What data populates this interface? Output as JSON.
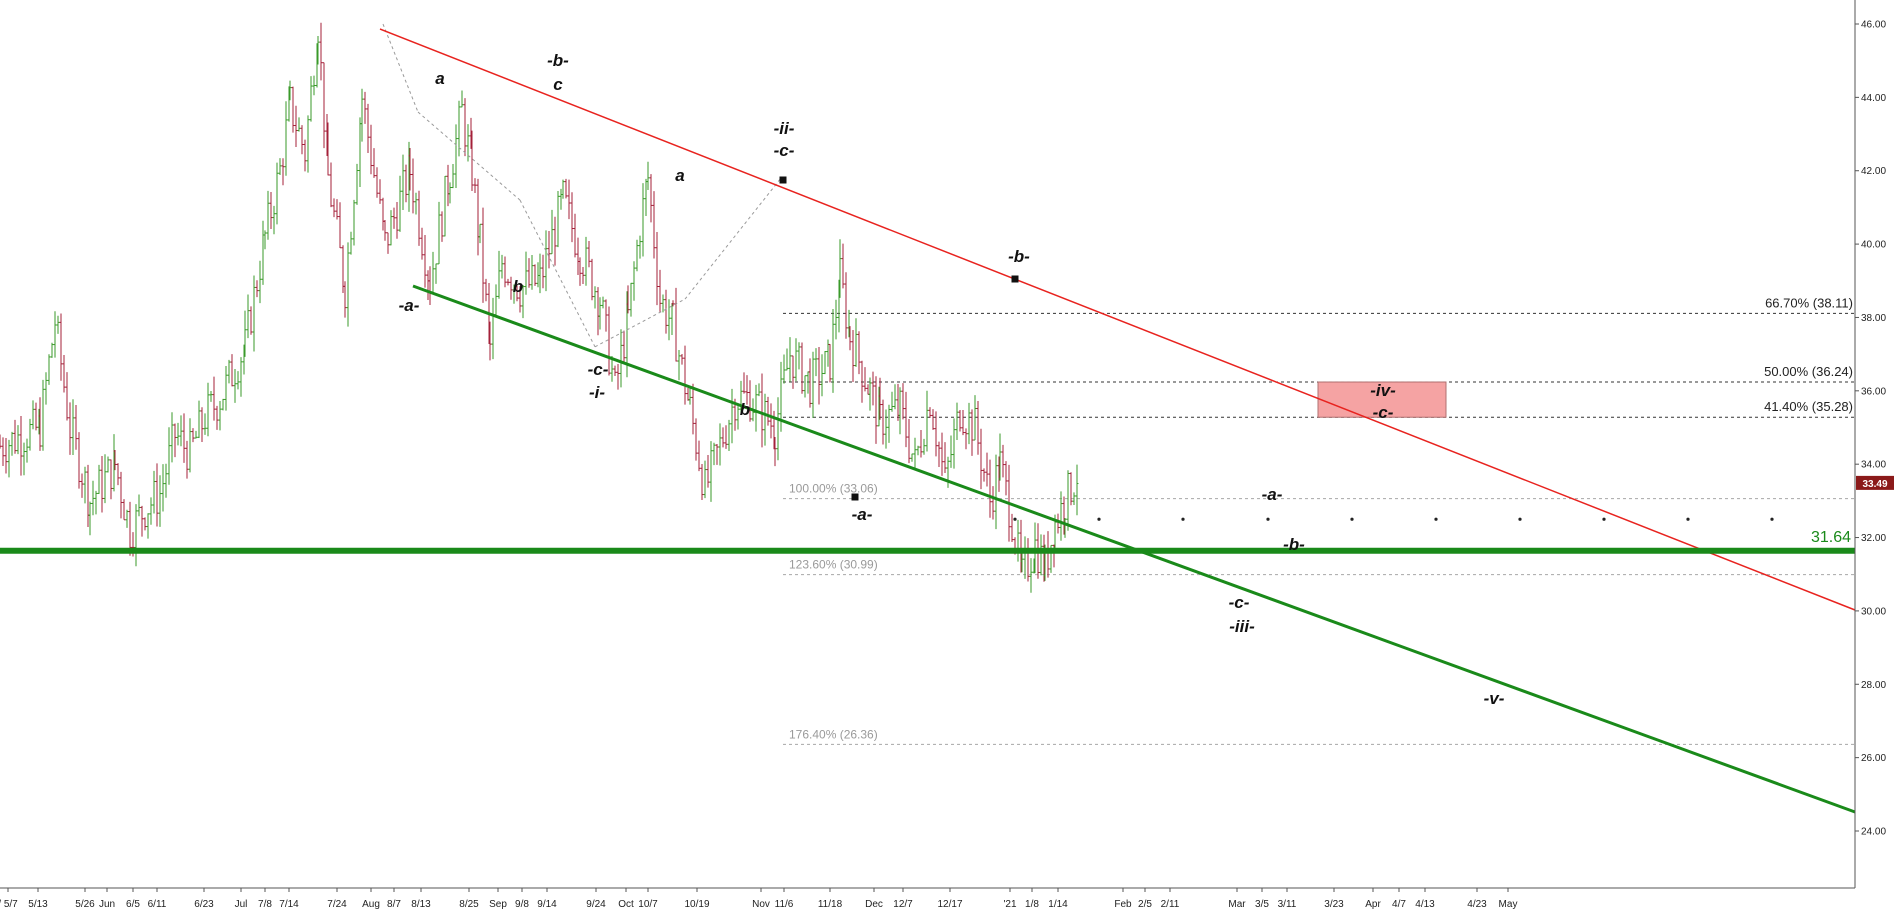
{
  "chart_data": {
    "type": "line",
    "y_axis": {
      "range": [
        22.0,
        47.0
      ],
      "side": "right",
      "ticks": [
        "46.00",
        "44.00",
        "42.00",
        "40.00",
        "38.00",
        "36.00",
        "34.00",
        "32.00",
        "30.00",
        "28.00",
        "26.00",
        "24.00"
      ]
    },
    "x_axis": {
      "tick_labels": [
        "/ 5/7",
        "5/13",
        "5/26",
        "Jun",
        "6/5",
        "6/11",
        "6/23",
        "Jul",
        "7/8",
        "7/14",
        "7/24",
        "Aug",
        "8/7",
        "8/13",
        "8/25",
        "Sep",
        "9/8",
        "9/14",
        "9/24",
        "Oct",
        "10/7",
        "10/19",
        "Nov",
        "11/6",
        "11/18",
        "Dec",
        "12/7",
        "12/17",
        "'21",
        "1/8",
        "1/14",
        "Feb",
        "2/5",
        "2/11",
        "Mar",
        "3/5",
        "3/11",
        "3/23",
        "Apr",
        "4/7",
        "4/13",
        "4/23",
        "May"
      ]
    },
    "price_path": [
      [
        0,
        34.5
      ],
      [
        40,
        35.0
      ],
      [
        55,
        37.9
      ],
      [
        70,
        35.0
      ],
      [
        90,
        33.0
      ],
      [
        115,
        34.0
      ],
      [
        130,
        32.2
      ],
      [
        145,
        32.8
      ],
      [
        160,
        33.2
      ],
      [
        175,
        34.8
      ],
      [
        190,
        34.3
      ],
      [
        205,
        35.3
      ],
      [
        220,
        35.8
      ],
      [
        245,
        37.2
      ],
      [
        265,
        40.2
      ],
      [
        280,
        42.0
      ],
      [
        290,
        43.8
      ],
      [
        305,
        42.5
      ],
      [
        318,
        46.0
      ],
      [
        328,
        41.8
      ],
      [
        345,
        38.8
      ],
      [
        362,
        44.0
      ],
      [
        385,
        40.0
      ],
      [
        410,
        42.0
      ],
      [
        430,
        39.0
      ],
      [
        450,
        42.0
      ],
      [
        462,
        43.6
      ],
      [
        472,
        42.0
      ],
      [
        480,
        40.0
      ],
      [
        490,
        37.2
      ],
      [
        502,
        39.5
      ],
      [
        520,
        38.8
      ],
      [
        540,
        39.0
      ],
      [
        563,
        41.2
      ],
      [
        580,
        39.8
      ],
      [
        600,
        38.5
      ],
      [
        615,
        36.0
      ],
      [
        628,
        38.0
      ],
      [
        640,
        40.5
      ],
      [
        648,
        41.8
      ],
      [
        660,
        38.5
      ],
      [
        673,
        37.8
      ],
      [
        690,
        35.5
      ],
      [
        705,
        33.3
      ],
      [
        720,
        34.5
      ],
      [
        735,
        35.8
      ],
      [
        750,
        35.8
      ],
      [
        775,
        35.0
      ],
      [
        790,
        37.0
      ],
      [
        810,
        36.2
      ],
      [
        830,
        36.8
      ],
      [
        840,
        39.1
      ],
      [
        850,
        37.5
      ],
      [
        870,
        36.0
      ],
      [
        880,
        35.2
      ],
      [
        900,
        35.5
      ],
      [
        915,
        34.0
      ],
      [
        930,
        35.8
      ],
      [
        945,
        33.5
      ],
      [
        960,
        35.5
      ],
      [
        975,
        35.0
      ],
      [
        990,
        33.0
      ],
      [
        1000,
        34.0
      ],
      [
        1012,
        32.5
      ],
      [
        1022,
        30.9
      ],
      [
        1035,
        31.8
      ],
      [
        1045,
        31.2
      ],
      [
        1055,
        32.4
      ],
      [
        1065,
        33.0
      ],
      [
        1078,
        33.8
      ]
    ],
    "trendlines": [
      {
        "name": "upper channel",
        "color": "#e8231f",
        "from": [
          315,
          46.0
        ],
        "to": [
          1533,
          30.0
        ]
      },
      {
        "name": "lower channel",
        "color": "#1a8a1a",
        "from": [
          342,
          39.0
        ],
        "to": [
          1533,
          24.5
        ]
      }
    ],
    "support_line": {
      "value": 31.64,
      "label": "31.64",
      "color": "#1a8a1a"
    },
    "fib_levels": [
      {
        "label": "66.70% (38.11)",
        "value": 38.11,
        "style": "dark"
      },
      {
        "label": "50.00% (36.24)",
        "value": 36.24,
        "style": "dark"
      },
      {
        "label": "41.40% (35.28)",
        "value": 35.28,
        "style": "dark"
      },
      {
        "label": "100.00% (33.06)",
        "value": 33.06,
        "style": "gray"
      },
      {
        "label": "123.60% (30.99)",
        "value": 30.99,
        "style": "gray"
      },
      {
        "label": "176.40% (26.36)",
        "value": 26.36,
        "style": "gray"
      }
    ],
    "target_zone": {
      "from": 35.28,
      "to": 36.24,
      "color": "#f5a3a3"
    },
    "projection_value": 32.5,
    "current_price": {
      "value": 33.49,
      "label": "33.49",
      "color": "#8b1a1a"
    },
    "wave_labels": [
      "a",
      "-b-",
      "c",
      "-a-",
      "b",
      "-c-",
      "-i-",
      "a",
      "b",
      "-ii-",
      "-c-",
      "-b-",
      "-a-",
      "-iv-",
      "-c-",
      "-a-",
      "-b-",
      "-c-",
      "-iii-",
      "-v-"
    ]
  }
}
